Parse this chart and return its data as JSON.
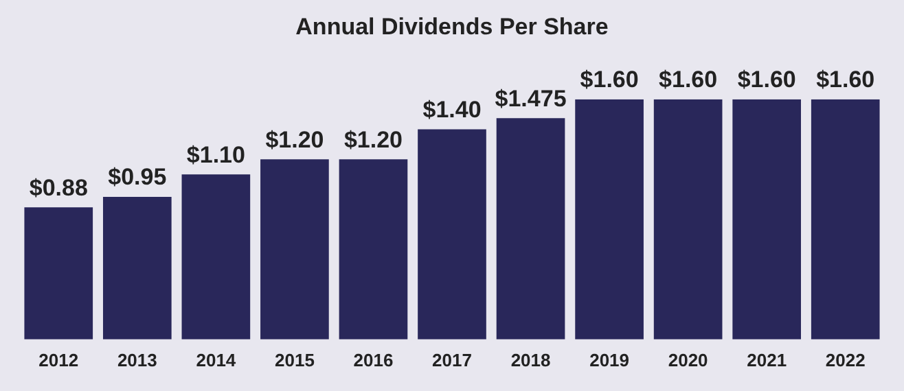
{
  "chart_data": {
    "type": "bar",
    "title": "Annual Dividends Per Share",
    "categories": [
      "2012",
      "2013",
      "2014",
      "2015",
      "2016",
      "2017",
      "2018",
      "2019",
      "2020",
      "2021",
      "2022"
    ],
    "values": [
      0.88,
      0.95,
      1.1,
      1.2,
      1.2,
      1.4,
      1.475,
      1.6,
      1.6,
      1.6,
      1.6
    ],
    "value_labels": [
      "$0.88",
      "$0.95",
      "$1.10",
      "$1.20",
      "$1.20",
      "$1.40",
      "$1.475",
      "$1.60",
      "$1.60",
      "$1.60",
      "$1.60"
    ],
    "color": "#29275a",
    "tick_labels": "x",
    "legend": false
  }
}
